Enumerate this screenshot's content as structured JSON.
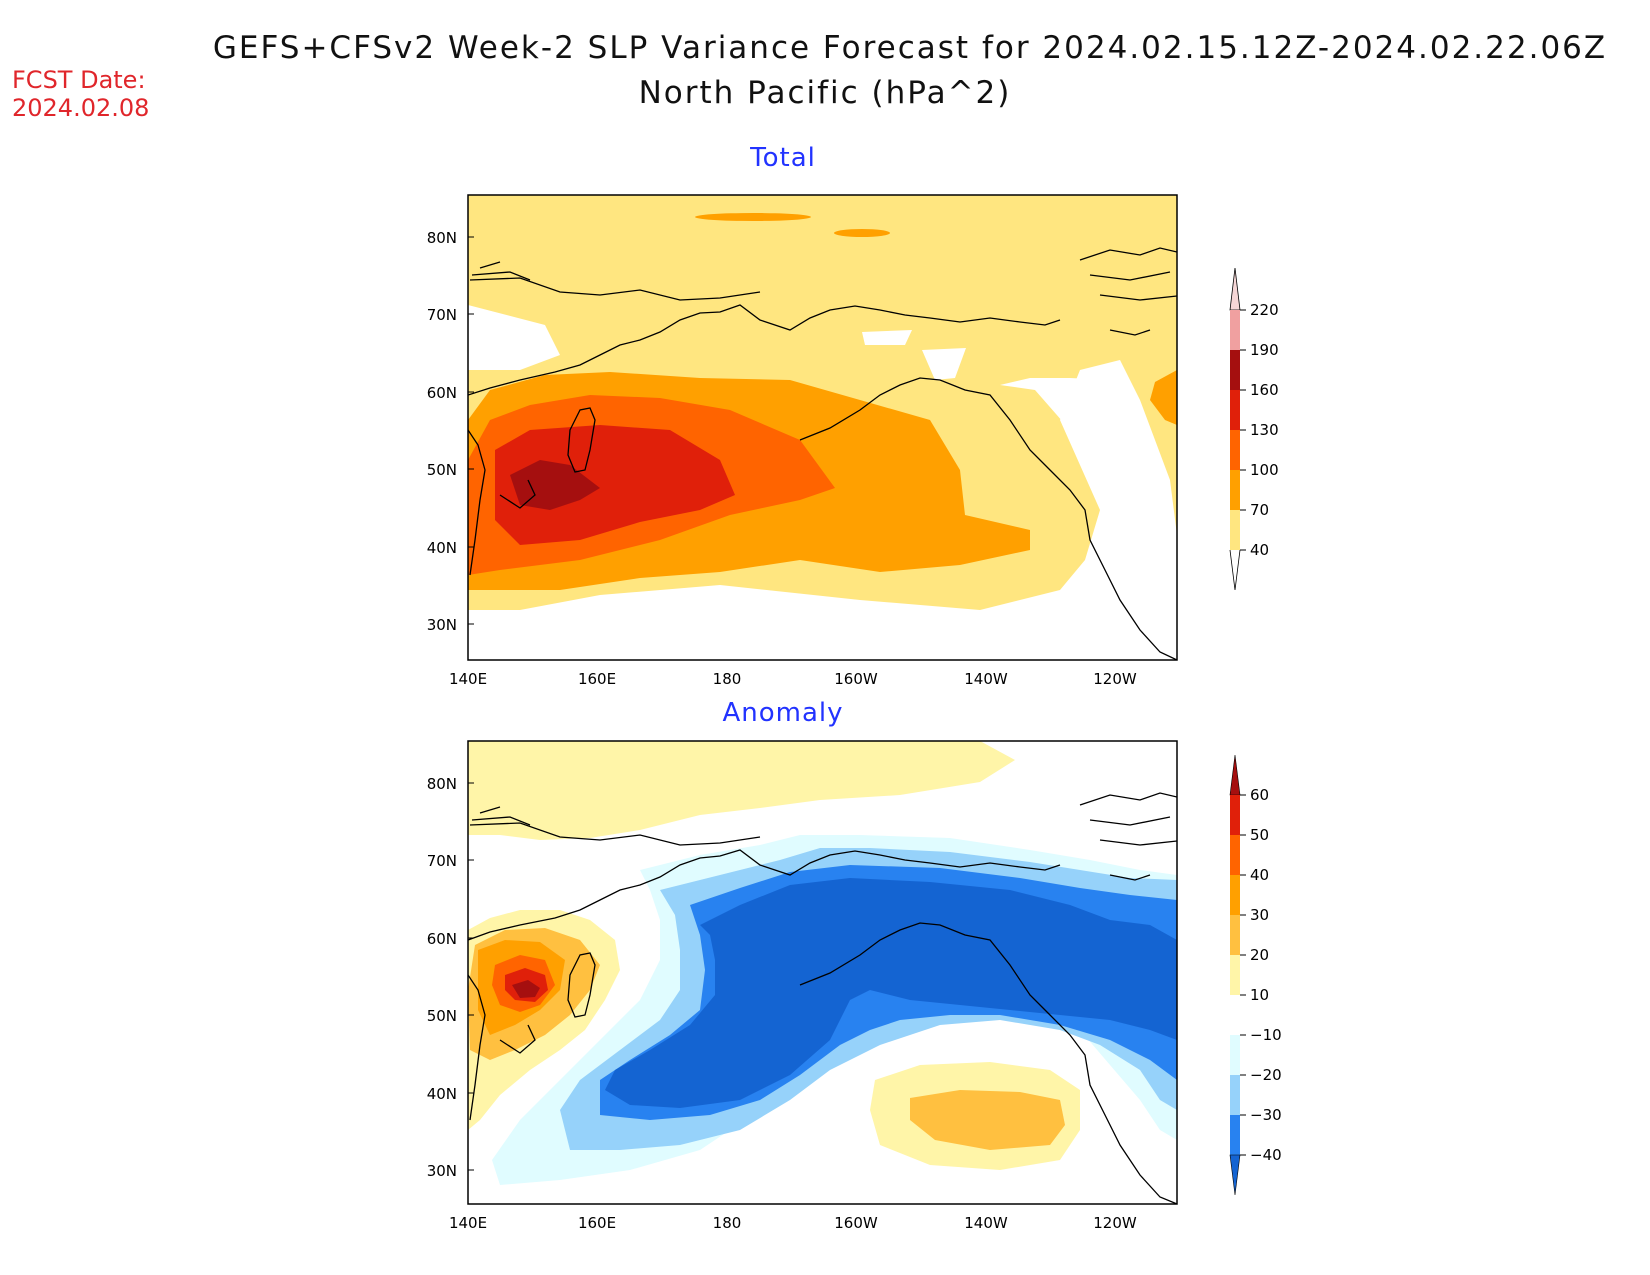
{
  "header": {
    "title_line1": "GEFS+CFSv2 Week-2 SLP Variance Forecast for 2024.02.15.12Z-2024.02.22.06Z",
    "title_line2": "North Pacific (hPa^2)",
    "fcst_label": "FCST Date:",
    "fcst_date": "2024.02.08"
  },
  "panels": [
    {
      "title": "Total",
      "lat_ticks": [
        "80N",
        "70N",
        "60N",
        "50N",
        "40N",
        "30N"
      ],
      "lon_ticks": [
        "140E",
        "160E",
        "180",
        "160W",
        "140W",
        "120W"
      ],
      "colorbar": {
        "labels": [
          "220",
          "190",
          "160",
          "130",
          "100",
          "70",
          "40"
        ],
        "colors": [
          "#f5d6d6",
          "#f0a0a0",
          "#a50f0f",
          "#e0200a",
          "#ff6400",
          "#ffa000",
          "#ffe680"
        ]
      }
    },
    {
      "title": "Anomaly",
      "lat_ticks": [
        "80N",
        "70N",
        "60N",
        "50N",
        "40N",
        "30N"
      ],
      "lon_ticks": [
        "140E",
        "160E",
        "180",
        "160W",
        "140W",
        "120W"
      ],
      "colorbar": {
        "labels": [
          "60",
          "50",
          "40",
          "30",
          "20",
          "10",
          "−10",
          "−20",
          "−30",
          "−40"
        ],
        "colors": [
          "#a50f0f",
          "#e0200a",
          "#ff6400",
          "#ffa000",
          "#ffc040",
          "#fff5a8",
          "#ffffff",
          "#e0fcff",
          "#96d2fa",
          "#2882f0",
          "#1464d2"
        ]
      }
    }
  ]
}
